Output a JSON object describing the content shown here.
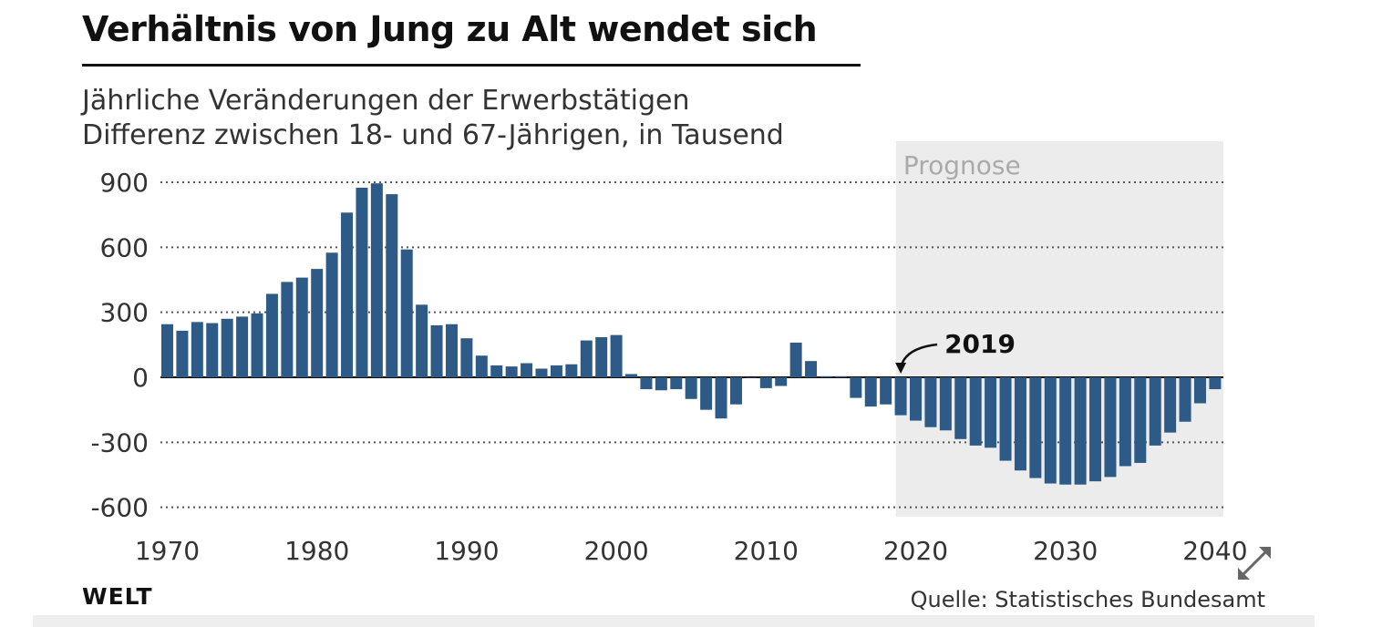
{
  "header": {
    "title": "Verhältnis von Jung zu Alt wendet sich",
    "subtitle_line1": "Jährliche Veränderungen der Erwerbstätigen",
    "subtitle_line2": "Differenz zwischen 18- und 67-Jährigen, in Tausend"
  },
  "footer": {
    "brand": "WELT",
    "source": "Quelle: Statistisches Bundesamt"
  },
  "colors": {
    "bar": "#2e5a87",
    "forecast_band": "#ececec",
    "text": "#333333"
  },
  "icons": {
    "expand": "expand-arrows-icon"
  },
  "chart_data": {
    "type": "bar",
    "title": "Verhältnis von Jung zu Alt wendet sich",
    "subtitle": "Jährliche Veränderungen der Erwerbstätigen Differenz zwischen 18- und 67-Jährigen, in Tausend",
    "xlabel": "",
    "ylabel": "",
    "ylim": [
      -600,
      900
    ],
    "yticks": [
      900,
      600,
      300,
      0,
      -300,
      -600
    ],
    "ytick_labels": [
      "900",
      "600",
      "300",
      "0",
      "-300",
      "-600"
    ],
    "xticks": [
      1970,
      1980,
      1990,
      2000,
      2010,
      2020,
      2030,
      2040
    ],
    "xtick_labels": [
      "1970",
      "1980",
      "1990",
      "2000",
      "2010",
      "2020",
      "2030",
      "2040"
    ],
    "grid": "horizontal dotted",
    "forecast": {
      "label": "Prognose",
      "from": 2019,
      "to": 2040
    },
    "annotation": {
      "label": "2019",
      "year": 2019
    },
    "categories": [
      1970,
      1971,
      1972,
      1973,
      1974,
      1975,
      1976,
      1977,
      1978,
      1979,
      1980,
      1981,
      1982,
      1983,
      1984,
      1985,
      1986,
      1987,
      1988,
      1989,
      1990,
      1991,
      1992,
      1993,
      1994,
      1995,
      1996,
      1997,
      1998,
      1999,
      2000,
      2001,
      2002,
      2003,
      2004,
      2005,
      2006,
      2007,
      2008,
      2009,
      2010,
      2011,
      2012,
      2013,
      2014,
      2015,
      2016,
      2017,
      2018,
      2019,
      2020,
      2021,
      2022,
      2023,
      2024,
      2025,
      2026,
      2027,
      2028,
      2029,
      2030,
      2031,
      2032,
      2033,
      2034,
      2035,
      2036,
      2037,
      2038,
      2039,
      2040
    ],
    "values": [
      245,
      215,
      255,
      250,
      270,
      280,
      295,
      385,
      440,
      460,
      500,
      575,
      760,
      875,
      895,
      845,
      590,
      335,
      240,
      245,
      180,
      100,
      55,
      50,
      65,
      40,
      55,
      60,
      170,
      185,
      195,
      15,
      -55,
      -60,
      -55,
      -100,
      -150,
      -190,
      -125,
      0,
      -50,
      -40,
      160,
      75,
      5,
      5,
      -95,
      -135,
      -125,
      -175,
      -200,
      -230,
      -245,
      -285,
      -315,
      -325,
      -385,
      -430,
      -465,
      -490,
      -495,
      -495,
      -480,
      -460,
      -410,
      -395,
      -315,
      -255,
      -205,
      -120,
      -55
    ]
  }
}
